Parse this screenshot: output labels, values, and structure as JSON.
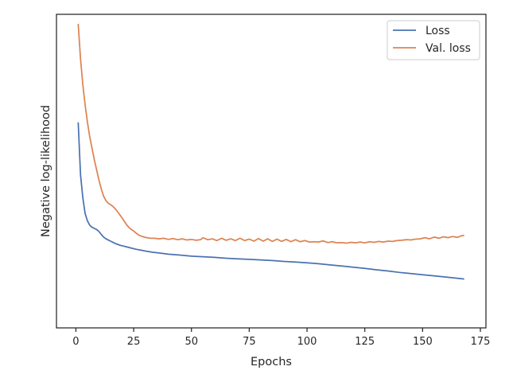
{
  "chart_data": {
    "type": "line",
    "title": "",
    "xlabel": "Epochs",
    "ylabel": "Negative log-likelihood",
    "xlim": [
      -8.4,
      177.4
    ],
    "ylim": [
      0,
      1
    ],
    "x_ticks": [
      0,
      25,
      50,
      75,
      100,
      125,
      150,
      175
    ],
    "y_ticks": [],
    "grid": false,
    "legend_position": "top-right",
    "series": [
      {
        "name": "Loss",
        "color": "#4c72b0",
        "points": [
          [
            1,
            0.66
          ],
          [
            2,
            0.48
          ],
          [
            3,
            0.4
          ],
          [
            4,
            0.345
          ],
          [
            5,
            0.32
          ],
          [
            6,
            0.305
          ],
          [
            7,
            0.298
          ],
          [
            8,
            0.294
          ],
          [
            9,
            0.29
          ],
          [
            10,
            0.283
          ],
          [
            11,
            0.273
          ],
          [
            12,
            0.264
          ],
          [
            13,
            0.258
          ],
          [
            14,
            0.254
          ],
          [
            15,
            0.25
          ],
          [
            16,
            0.246
          ],
          [
            17,
            0.242
          ],
          [
            18,
            0.239
          ],
          [
            19,
            0.236
          ],
          [
            20,
            0.234
          ],
          [
            22,
            0.23
          ],
          [
            24,
            0.226
          ],
          [
            26,
            0.222
          ],
          [
            28,
            0.219
          ],
          [
            30,
            0.216
          ],
          [
            33,
            0.212
          ],
          [
            36,
            0.209
          ],
          [
            40,
            0.205
          ],
          [
            45,
            0.202
          ],
          [
            50,
            0.198
          ],
          [
            55,
            0.196
          ],
          [
            60,
            0.194
          ],
          [
            65,
            0.191
          ],
          [
            70,
            0.189
          ],
          [
            75,
            0.187
          ],
          [
            80,
            0.185
          ],
          [
            85,
            0.183
          ],
          [
            90,
            0.18
          ],
          [
            95,
            0.178
          ],
          [
            100,
            0.175
          ],
          [
            105,
            0.172
          ],
          [
            110,
            0.168
          ],
          [
            115,
            0.164
          ],
          [
            120,
            0.16
          ],
          [
            125,
            0.156
          ],
          [
            130,
            0.151
          ],
          [
            135,
            0.147
          ],
          [
            140,
            0.142
          ],
          [
            145,
            0.138
          ],
          [
            150,
            0.134
          ],
          [
            155,
            0.13
          ],
          [
            160,
            0.126
          ],
          [
            165,
            0.122
          ],
          [
            168,
            0.119
          ]
        ]
      },
      {
        "name": "Val. loss",
        "color": "#dd8452",
        "points": [
          [
            1,
            1.0
          ],
          [
            2,
            0.88
          ],
          [
            3,
            0.79
          ],
          [
            4,
            0.72
          ],
          [
            5,
            0.66
          ],
          [
            6,
            0.61
          ],
          [
            7,
            0.57
          ],
          [
            8,
            0.53
          ],
          [
            9,
            0.495
          ],
          [
            10,
            0.46
          ],
          [
            11,
            0.43
          ],
          [
            12,
            0.405
          ],
          [
            13,
            0.39
          ],
          [
            14,
            0.381
          ],
          [
            15,
            0.376
          ],
          [
            16,
            0.37
          ],
          [
            17,
            0.362
          ],
          [
            18,
            0.352
          ],
          [
            19,
            0.341
          ],
          [
            20,
            0.33
          ],
          [
            21,
            0.318
          ],
          [
            22,
            0.306
          ],
          [
            23,
            0.297
          ],
          [
            24,
            0.29
          ],
          [
            25,
            0.285
          ],
          [
            26,
            0.278
          ],
          [
            27,
            0.272
          ],
          [
            28,
            0.268
          ],
          [
            30,
            0.263
          ],
          [
            32,
            0.26
          ],
          [
            34,
            0.26
          ],
          [
            36,
            0.258
          ],
          [
            38,
            0.26
          ],
          [
            40,
            0.256
          ],
          [
            42,
            0.259
          ],
          [
            44,
            0.255
          ],
          [
            46,
            0.258
          ],
          [
            48,
            0.254
          ],
          [
            50,
            0.256
          ],
          [
            52,
            0.253
          ],
          [
            54,
            0.255
          ],
          [
            55,
            0.262
          ],
          [
            57,
            0.255
          ],
          [
            59,
            0.258
          ],
          [
            61,
            0.252
          ],
          [
            63,
            0.26
          ],
          [
            65,
            0.253
          ],
          [
            67,
            0.258
          ],
          [
            69,
            0.252
          ],
          [
            71,
            0.26
          ],
          [
            73,
            0.252
          ],
          [
            75,
            0.257
          ],
          [
            77,
            0.25
          ],
          [
            79,
            0.259
          ],
          [
            81,
            0.25
          ],
          [
            83,
            0.258
          ],
          [
            85,
            0.249
          ],
          [
            87,
            0.257
          ],
          [
            89,
            0.249
          ],
          [
            91,
            0.256
          ],
          [
            93,
            0.248
          ],
          [
            95,
            0.255
          ],
          [
            97,
            0.248
          ],
          [
            99,
            0.252
          ],
          [
            101,
            0.247
          ],
          [
            103,
            0.248
          ],
          [
            105,
            0.247
          ],
          [
            107,
            0.251
          ],
          [
            109,
            0.245
          ],
          [
            111,
            0.248
          ],
          [
            113,
            0.244
          ],
          [
            115,
            0.245
          ],
          [
            117,
            0.243
          ],
          [
            119,
            0.246
          ],
          [
            121,
            0.244
          ],
          [
            123,
            0.247
          ],
          [
            125,
            0.244
          ],
          [
            127,
            0.248
          ],
          [
            129,
            0.246
          ],
          [
            131,
            0.249
          ],
          [
            133,
            0.247
          ],
          [
            135,
            0.25
          ],
          [
            137,
            0.249
          ],
          [
            139,
            0.252
          ],
          [
            141,
            0.253
          ],
          [
            143,
            0.255
          ],
          [
            145,
            0.254
          ],
          [
            147,
            0.257
          ],
          [
            149,
            0.258
          ],
          [
            151,
            0.262
          ],
          [
            153,
            0.258
          ],
          [
            155,
            0.264
          ],
          [
            157,
            0.26
          ],
          [
            159,
            0.265
          ],
          [
            161,
            0.262
          ],
          [
            163,
            0.266
          ],
          [
            165,
            0.263
          ],
          [
            167,
            0.269
          ],
          [
            168,
            0.27
          ]
        ]
      }
    ]
  }
}
